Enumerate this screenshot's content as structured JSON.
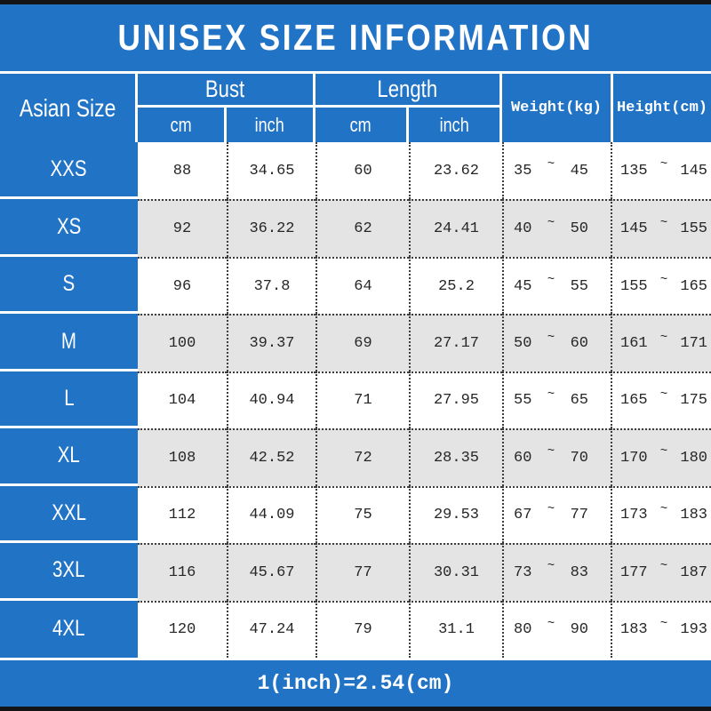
{
  "page": {
    "title": "UNISEX SIZE INFORMATION",
    "footer_note": "1(inch)=2.54(cm)"
  },
  "header": {
    "row_label": "Asian Size",
    "groups": [
      {
        "label": "Bust",
        "sub": [
          "cm",
          "inch"
        ]
      },
      {
        "label": "Length",
        "sub": [
          "cm",
          "inch"
        ]
      }
    ],
    "weight_label": "Weight(kg)",
    "height_label": "Height(cm)"
  },
  "table": {
    "tilde": "~",
    "rows": [
      {
        "size": "XXS",
        "bust_cm": "88",
        "bust_inch": "34.65",
        "length_cm": "60",
        "length_inch": "23.62",
        "weight_min": "35",
        "weight_max": "45",
        "height_min": "135",
        "height_max": "145"
      },
      {
        "size": "XS",
        "bust_cm": "92",
        "bust_inch": "36.22",
        "length_cm": "62",
        "length_inch": "24.41",
        "weight_min": "40",
        "weight_max": "50",
        "height_min": "145",
        "height_max": "155"
      },
      {
        "size": "S",
        "bust_cm": "96",
        "bust_inch": "37.8",
        "length_cm": "64",
        "length_inch": "25.2",
        "weight_min": "45",
        "weight_max": "55",
        "height_min": "155",
        "height_max": "165"
      },
      {
        "size": "M",
        "bust_cm": "100",
        "bust_inch": "39.37",
        "length_cm": "69",
        "length_inch": "27.17",
        "weight_min": "50",
        "weight_max": "60",
        "height_min": "161",
        "height_max": "171"
      },
      {
        "size": "L",
        "bust_cm": "104",
        "bust_inch": "40.94",
        "length_cm": "71",
        "length_inch": "27.95",
        "weight_min": "55",
        "weight_max": "65",
        "height_min": "165",
        "height_max": "175"
      },
      {
        "size": "XL",
        "bust_cm": "108",
        "bust_inch": "42.52",
        "length_cm": "72",
        "length_inch": "28.35",
        "weight_min": "60",
        "weight_max": "70",
        "height_min": "170",
        "height_max": "180"
      },
      {
        "size": "XXL",
        "bust_cm": "112",
        "bust_inch": "44.09",
        "length_cm": "75",
        "length_inch": "29.53",
        "weight_min": "67",
        "weight_max": "77",
        "height_min": "173",
        "height_max": "183"
      },
      {
        "size": "3XL",
        "bust_cm": "116",
        "bust_inch": "45.67",
        "length_cm": "77",
        "length_inch": "30.31",
        "weight_min": "73",
        "weight_max": "83",
        "height_min": "177",
        "height_max": "187"
      },
      {
        "size": "4XL",
        "bust_cm": "120",
        "bust_inch": "47.24",
        "length_cm": "79",
        "length_inch": "31.1",
        "weight_min": "80",
        "weight_max": "90",
        "height_min": "183",
        "height_max": "193"
      }
    ]
  },
  "colors": {
    "accent_blue": "#2173c5",
    "alt_row_gray": "#e4e4e4",
    "bar_black": "#141414",
    "text_white": "#ffffff",
    "text_dark": "#262626"
  }
}
